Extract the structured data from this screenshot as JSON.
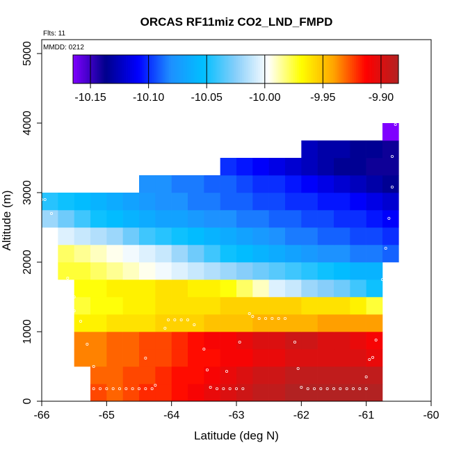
{
  "chart_data": {
    "type": "heatmap",
    "title": "ORCAS RF11miz CO2_LND_FMPD",
    "annotations": [
      "Flts: 11",
      "MMDD: 0212"
    ],
    "xlabel": "Latitude (deg N)",
    "ylabel": "Altitude (m)",
    "xlim": [
      -66,
      -60
    ],
    "ylim": [
      0,
      5200
    ],
    "x_ticks": [
      -66,
      -65,
      -64,
      -63,
      -62,
      -61,
      -60
    ],
    "y_ticks": [
      0,
      1000,
      2000,
      3000,
      4000,
      5000
    ],
    "colorbar": {
      "range": [
        -10.165,
        -9.885
      ],
      "ticks": [
        -10.15,
        -10.1,
        -10.05,
        -10.0,
        -9.95,
        -9.9
      ],
      "tick_labels": [
        "-10.15",
        "-10.10",
        "-10.05",
        "-10.00",
        "-9.95",
        "-9.90"
      ],
      "colors": [
        "#7f00ff",
        "#00008b",
        "#0000ff",
        "#1e90ff",
        "#00bfff",
        "#87cefa",
        "#ffffff",
        "#ffff00",
        "#ffa500",
        "#ff0000",
        "#b22222"
      ]
    },
    "cell_width_deg": 0.25,
    "cell_height_m": 250,
    "rows": [
      {
        "alt": 0,
        "start": -65.25,
        "values": [
          -9.925,
          -9.93,
          -9.925,
          -9.92,
          -9.92,
          -9.915,
          -9.91,
          -9.905,
          -9.9,
          -9.895,
          -9.89,
          -9.89,
          -9.885,
          -9.885,
          -9.885,
          -9.885,
          -9.885,
          -9.885
        ]
      },
      {
        "alt": 250,
        "start": -65.25,
        "values": [
          -9.93,
          -9.93,
          -9.925,
          -9.925,
          -9.92,
          -9.915,
          -9.915,
          -9.91,
          -9.905,
          -9.9,
          -9.895,
          -9.895,
          -9.89,
          -9.89,
          -9.89,
          -9.89,
          -9.89,
          -9.89
        ]
      },
      {
        "alt": 500,
        "start": -65.5,
        "values": [
          -9.935,
          -9.935,
          -9.93,
          -9.93,
          -9.925,
          -9.925,
          -9.92,
          -9.915,
          -9.915,
          -9.91,
          -9.91,
          -9.905,
          -9.905,
          -9.9,
          -9.9,
          -9.9,
          -9.9,
          -9.9,
          -9.905
        ]
      },
      {
        "alt": 750,
        "start": -65.5,
        "values": [
          -9.935,
          -9.935,
          -9.93,
          -9.93,
          -9.925,
          -9.925,
          -9.92,
          -9.915,
          -9.91,
          -9.91,
          -9.905,
          -9.9,
          -9.9,
          -9.895,
          -9.895,
          -9.9,
          -9.9,
          -9.905,
          -9.91
        ]
      },
      {
        "alt": 1000,
        "start": -65.5,
        "values": [
          -9.965,
          -9.965,
          -9.96,
          -9.96,
          -9.96,
          -9.955,
          -9.955,
          -9.955,
          -9.95,
          -9.95,
          -9.95,
          -9.945,
          -9.945,
          -9.945,
          -9.945,
          -9.94,
          -9.94,
          -9.94,
          -9.94
        ]
      },
      {
        "alt": 1250,
        "start": -65.5,
        "values": [
          -9.975,
          -9.97,
          -9.97,
          -9.965,
          -9.965,
          -9.96,
          -9.96,
          -9.96,
          -9.96,
          -9.955,
          -9.955,
          -9.955,
          -9.955,
          -9.955,
          -9.96,
          -9.96,
          -9.96,
          -9.965,
          -9.975
        ]
      },
      {
        "alt": 1500,
        "start": -65.5,
        "values": [
          -9.97,
          -9.97,
          -9.965,
          -9.965,
          -9.965,
          -9.96,
          -9.96,
          -9.965,
          -9.965,
          -9.97,
          -9.98,
          -9.99,
          -10.005,
          -10.01,
          -10.02,
          -10.025,
          -10.03,
          -10.04,
          -10.05
        ]
      },
      {
        "alt": 1750,
        "start": -65.75,
        "values": [
          -9.975,
          -9.975,
          -9.98,
          -9.985,
          -9.99,
          -9.995,
          -10.0,
          -10.005,
          -10.01,
          -10.015,
          -10.02,
          -10.025,
          -10.03,
          -10.035,
          -10.04,
          -10.045,
          -10.05,
          -10.055,
          -10.06,
          -10.06
        ]
      },
      {
        "alt": 2000,
        "start": -65.75,
        "values": [
          -9.98,
          -9.985,
          -9.99,
          -9.995,
          -10.0,
          -10.005,
          -10.01,
          -10.02,
          -10.03,
          -10.04,
          -10.05,
          -10.055,
          -10.06,
          -10.065,
          -10.07,
          -10.075,
          -10.08,
          -10.08,
          -10.085,
          -10.085,
          -10.09
        ]
      },
      {
        "alt": 2250,
        "start": -65.75,
        "values": [
          -10.005,
          -10.01,
          -10.015,
          -10.02,
          -10.03,
          -10.04,
          -10.045,
          -10.05,
          -10.055,
          -10.06,
          -10.065,
          -10.07,
          -10.075,
          -10.08,
          -10.085,
          -10.085,
          -10.09,
          -10.09,
          -10.095,
          -10.095,
          -10.1
        ]
      },
      {
        "alt": 2500,
        "start": -66.0,
        "values": [
          -10.02,
          -10.03,
          -10.04,
          -10.05,
          -10.055,
          -10.06,
          -10.065,
          -10.07,
          -10.07,
          -10.075,
          -10.08,
          -10.08,
          -10.085,
          -10.085,
          -10.09,
          -10.09,
          -10.095,
          -10.095,
          -10.1,
          -10.1,
          -10.105,
          -10.11
        ]
      },
      {
        "alt": 2750,
        "start": -66.0,
        "values": [
          -10.045,
          -10.05,
          -10.055,
          -10.06,
          -10.065,
          -10.07,
          -10.075,
          -10.08,
          -10.08,
          -10.085,
          -10.085,
          -10.09,
          -10.09,
          -10.095,
          -10.095,
          -10.1,
          -10.1,
          -10.105,
          -10.105,
          -10.11,
          -10.115,
          -10.12
        ]
      },
      {
        "alt": 3000,
        "start": -64.5,
        "values": [
          -10.08,
          -10.08,
          -10.085,
          -10.085,
          -10.09,
          -10.09,
          -10.095,
          -10.1,
          -10.1,
          -10.105,
          -10.11,
          -10.115,
          -10.12,
          -10.125,
          -10.13,
          -10.135
        ]
      },
      {
        "alt": 3250,
        "start": -63.25,
        "values": [
          -10.1,
          -10.105,
          -10.11,
          -10.115,
          -10.12,
          -10.125,
          -10.13,
          -10.135,
          -10.135,
          -10.14,
          -10.14
        ]
      },
      {
        "alt": 3500,
        "start": -62.0,
        "values": [
          -10.125,
          -10.13,
          -10.13,
          -10.135,
          -10.135,
          -10.14
        ]
      },
      {
        "alt": 3750,
        "start": -60.75,
        "values": [
          -10.165
        ]
      }
    ],
    "sample_points": [
      [
        -65.2,
        180
      ],
      [
        -65.1,
        180
      ],
      [
        -65.0,
        180
      ],
      [
        -64.9,
        180
      ],
      [
        -64.8,
        180
      ],
      [
        -64.7,
        180
      ],
      [
        -64.6,
        180
      ],
      [
        -64.5,
        180
      ],
      [
        -64.4,
        180
      ],
      [
        -64.3,
        180
      ],
      [
        -64.25,
        230
      ],
      [
        -63.4,
        200
      ],
      [
        -63.3,
        180
      ],
      [
        -63.2,
        180
      ],
      [
        -63.1,
        180
      ],
      [
        -63.0,
        180
      ],
      [
        -62.9,
        180
      ],
      [
        -62.0,
        200
      ],
      [
        -61.9,
        180
      ],
      [
        -61.8,
        180
      ],
      [
        -61.7,
        180
      ],
      [
        -61.6,
        180
      ],
      [
        -61.5,
        180
      ],
      [
        -61.4,
        180
      ],
      [
        -61.3,
        180
      ],
      [
        -61.2,
        180
      ],
      [
        -61.1,
        180
      ],
      [
        -61.0,
        180
      ],
      [
        -65.3,
        210
      ],
      [
        -65.2,
        500
      ],
      [
        -65.3,
        820
      ],
      [
        -65.4,
        1150
      ],
      [
        -65.5,
        1300
      ],
      [
        -65.5,
        1500
      ],
      [
        -65.6,
        1770
      ],
      [
        -65.9,
        2070
      ],
      [
        -65.85,
        2700
      ],
      [
        -65.95,
        2900
      ],
      [
        -66.0,
        2900
      ],
      [
        -64.4,
        620
      ],
      [
        -64.1,
        1050
      ],
      [
        -64.05,
        1170
      ],
      [
        -63.95,
        1170
      ],
      [
        -63.85,
        1170
      ],
      [
        -63.75,
        1170
      ],
      [
        -63.65,
        1100
      ],
      [
        -63.5,
        750
      ],
      [
        -63.45,
        450
      ],
      [
        -63.15,
        430
      ],
      [
        -62.95,
        850
      ],
      [
        -62.8,
        1260
      ],
      [
        -62.75,
        1220
      ],
      [
        -62.65,
        1190
      ],
      [
        -62.55,
        1190
      ],
      [
        -62.45,
        1190
      ],
      [
        -62.35,
        1190
      ],
      [
        -62.25,
        1190
      ],
      [
        -62.1,
        850
      ],
      [
        -62.05,
        470
      ],
      [
        -61.0,
        350
      ],
      [
        -60.95,
        600
      ],
      [
        -60.9,
        630
      ],
      [
        -60.85,
        880
      ],
      [
        -60.75,
        1750
      ],
      [
        -60.7,
        2200
      ],
      [
        -60.65,
        2630
      ],
      [
        -60.6,
        3080
      ],
      [
        -60.6,
        3520
      ],
      [
        -60.55,
        3980
      ]
    ]
  }
}
